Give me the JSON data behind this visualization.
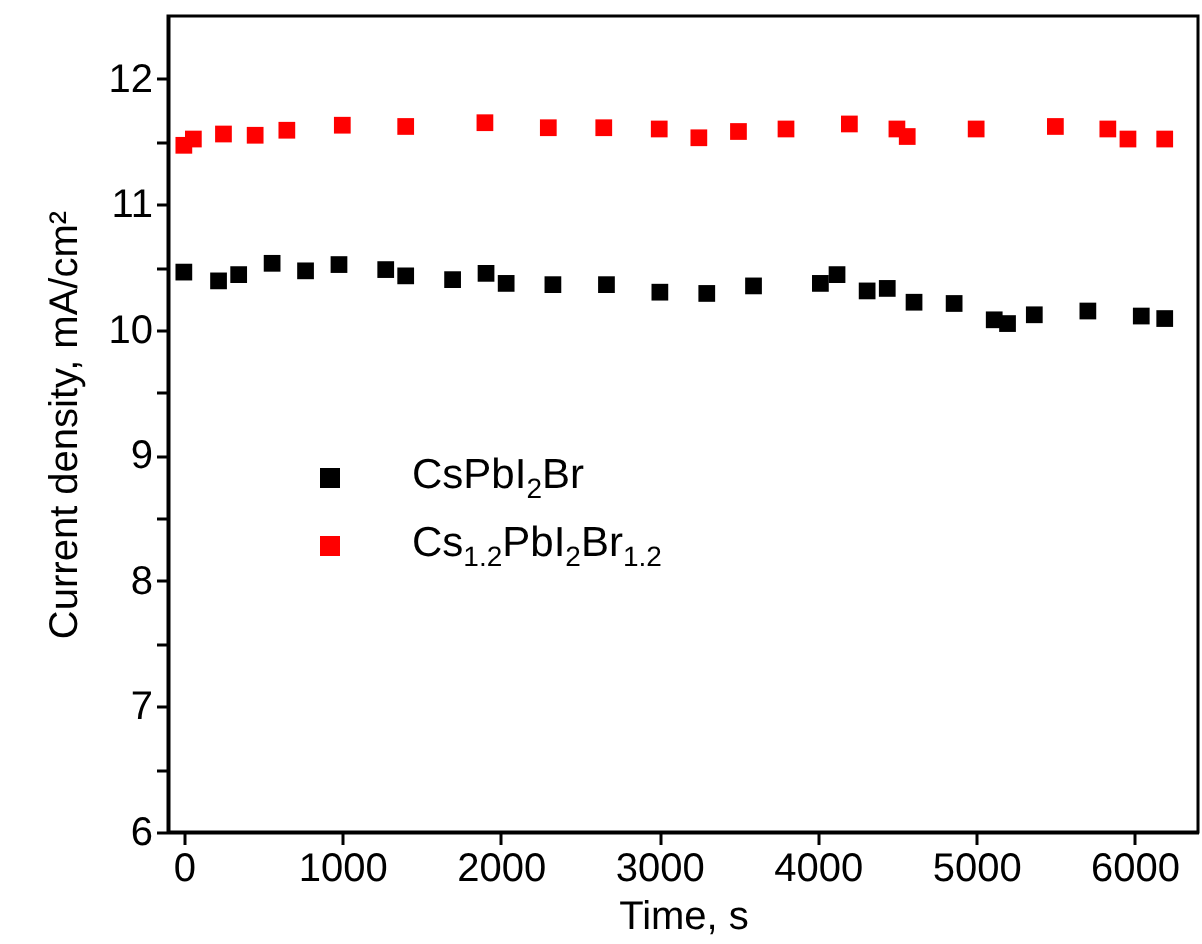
{
  "chart_data": {
    "type": "scatter",
    "xlabel": "Time, s",
    "ylabel": "Current density, mA/cm²",
    "marker": "square",
    "legend": "left",
    "xlim": [
      -100,
      6400
    ],
    "xticks": [
      0,
      1000,
      2000,
      3000,
      4000,
      5000,
      6000
    ],
    "ylim": [
      6,
      12.5
    ],
    "yticks": [
      6,
      {
        "value": 6.5,
        "label": null
      },
      7,
      {
        "value": 7.5,
        "label": null
      },
      8,
      {
        "value": 8.5,
        "label": null
      },
      9,
      {
        "value": 9.5,
        "label": null
      },
      10,
      {
        "value": 10.5,
        "label": null
      },
      11,
      {
        "value": 11.5,
        "label": null
      },
      12
    ],
    "series": [
      {
        "name": "CsPbI$_{2}$Br",
        "color": "#000000",
        "x": [
          0,
          219,
          346,
          557,
          768,
          979,
          1274,
          1400,
          1696,
          1907,
          2034,
          2329,
          2667,
          3004,
          3300,
          3595,
          4017,
          4122,
          4312,
          4439,
          4608,
          4861,
          5114,
          5198,
          5367,
          5705,
          6042,
          6190
        ],
        "values": [
          10.46,
          10.39,
          10.44,
          10.53,
          10.47,
          10.52,
          10.48,
          10.43,
          10.4,
          10.45,
          10.37,
          10.36,
          10.36,
          10.3,
          10.29,
          10.35,
          10.37,
          10.44,
          10.31,
          10.33,
          10.22,
          10.21,
          10.08,
          10.05,
          10.12,
          10.15,
          10.11,
          10.09
        ]
      },
      {
        "name": "Cs$_{1.2}$PbI$_{2}$Br$_{1.2}$",
        "color": "#ff0000",
        "x": [
          0,
          60,
          250,
          450,
          650,
          1000,
          1400,
          1900,
          2300,
          2650,
          3000,
          3250,
          3500,
          3800,
          4200,
          4500,
          4565,
          5000,
          5500,
          5831,
          5958,
          6190
        ],
        "values": [
          11.47,
          11.52,
          11.56,
          11.55,
          11.59,
          11.63,
          11.62,
          11.65,
          11.61,
          11.61,
          11.6,
          11.53,
          11.58,
          11.6,
          11.64,
          11.6,
          11.54,
          11.6,
          11.62,
          11.6,
          11.52,
          11.52
        ]
      }
    ]
  }
}
